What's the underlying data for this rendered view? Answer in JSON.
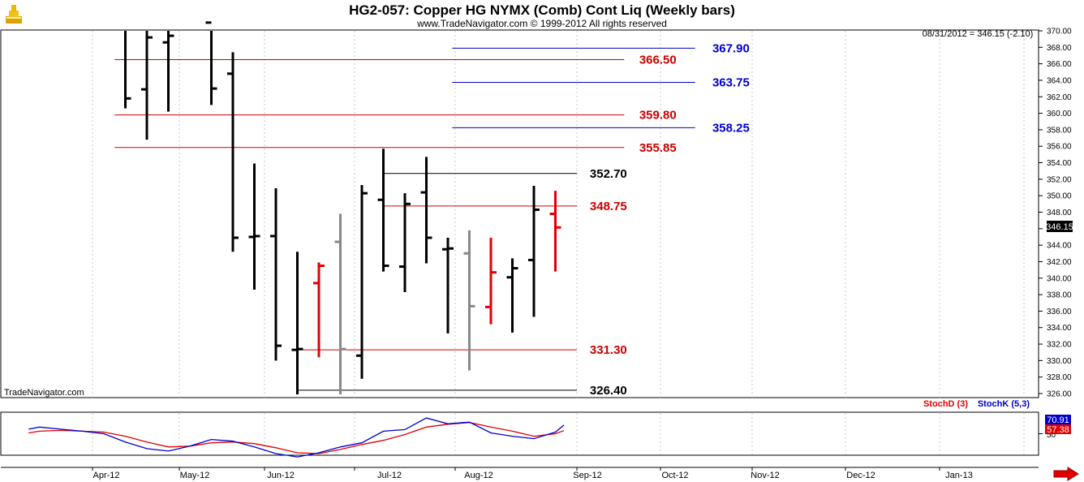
{
  "chart_data": {
    "type": "bar",
    "title": "HG2-057:  Copper HG NYMX (Comb) Cont Liq  (Weekly bars)",
    "subtitle": "www.TradeNavigator.com © 1999-2012 All rights reserved",
    "watermark": "TradeNavigator.com",
    "last_price_note": "08/31/2012 = 346.15 (-2.10)",
    "last_price_label": "346.15",
    "y_axis": {
      "min": 326,
      "max": 370,
      "ticks": [
        "370.00",
        "368.00",
        "366.00",
        "364.00",
        "362.00",
        "360.00",
        "358.00",
        "356.00",
        "354.00",
        "352.00",
        "350.00",
        "348.00",
        "346.00",
        "344.00",
        "342.00",
        "340.00",
        "338.00",
        "336.00",
        "334.00",
        "332.00",
        "330.00",
        "328.00",
        "326.00"
      ]
    },
    "x_axis": {
      "labels": [
        "Apr-12",
        "May-12",
        "Jun-12",
        "Jul-12",
        "Aug-12",
        "Sep-12",
        "Oct-12",
        "Nov-12",
        "Dec-12",
        "Jan-13"
      ]
    },
    "bars": [
      {
        "week": 1,
        "high": 371.5,
        "low": 360.6,
        "open": 371.2,
        "close": 361.8,
        "color": "#000000"
      },
      {
        "week": 2,
        "high": 371.8,
        "low": 356.8,
        "open": 362.9,
        "close": 369.2,
        "color": "#000000"
      },
      {
        "week": 3,
        "high": 371.5,
        "low": 360.2,
        "open": 368.6,
        "close": 369.4,
        "color": "#000000"
      },
      {
        "week": 5,
        "high": 371.5,
        "low": 361.0,
        "open": 371.0,
        "close": 363.0,
        "color": "#000000"
      },
      {
        "week": 6,
        "high": 367.4,
        "low": 343.2,
        "open": 364.8,
        "close": 344.9,
        "color": "#000000"
      },
      {
        "week": 7,
        "high": 353.9,
        "low": 338.6,
        "open": 345.0,
        "close": 345.1,
        "color": "#000000"
      },
      {
        "week": 8,
        "high": 350.9,
        "low": 330.0,
        "open": 345.1,
        "close": 331.8,
        "color": "#000000"
      },
      {
        "week": 9,
        "high": 343.2,
        "low": 325.8,
        "open": 331.3,
        "close": 331.4,
        "color": "#000000"
      },
      {
        "week": 10,
        "high": 341.9,
        "low": 330.4,
        "open": 339.4,
        "close": 341.5,
        "color": "#e00000"
      },
      {
        "week": 11,
        "high": 347.8,
        "low": 325.8,
        "open": 344.4,
        "close": 331.4,
        "color": "#888888"
      },
      {
        "week": 12,
        "high": 351.3,
        "low": 327.8,
        "open": 330.6,
        "close": 350.3,
        "color": "#000000"
      },
      {
        "week": 13,
        "high": 355.7,
        "low": 340.8,
        "open": 349.5,
        "close": 341.5,
        "color": "#000000"
      },
      {
        "week": 14,
        "high": 350.3,
        "low": 338.3,
        "open": 341.4,
        "close": 349.0,
        "color": "#000000"
      },
      {
        "week": 15,
        "high": 354.7,
        "low": 341.8,
        "open": 350.4,
        "close": 344.9,
        "color": "#000000"
      },
      {
        "week": 16,
        "high": 344.9,
        "low": 333.3,
        "open": 343.5,
        "close": 343.6,
        "color": "#000000"
      },
      {
        "week": 17,
        "high": 345.8,
        "low": 328.8,
        "open": 343.0,
        "close": 336.6,
        "color": "#888888"
      },
      {
        "week": 18,
        "high": 344.9,
        "low": 334.4,
        "open": 336.5,
        "close": 340.7,
        "color": "#e00000"
      },
      {
        "week": 19,
        "high": 342.4,
        "low": 333.4,
        "open": 340.1,
        "close": 341.2,
        "color": "#000000"
      },
      {
        "week": 20,
        "high": 351.2,
        "low": 335.3,
        "open": 342.2,
        "close": 348.3,
        "color": "#000000"
      },
      {
        "week": 21,
        "high": 350.6,
        "low": 340.8,
        "open": 347.8,
        "close": 346.15,
        "color": "#e00000"
      }
    ],
    "levels": [
      {
        "value": 367.9,
        "label": "367.90",
        "color": "#0000cc",
        "x_from": 16.2,
        "x_to": 27.5,
        "label_x": 28.3
      },
      {
        "value": 366.5,
        "label": "366.50",
        "color": "#cc0000",
        "x_from": 0.5,
        "x_to": 24.2,
        "label_x": 24.9
      },
      {
        "value": 363.75,
        "label": "363.75",
        "color": "#0000cc",
        "x_from": 16.2,
        "x_to": 27.5,
        "label_x": 28.3
      },
      {
        "value": 359.8,
        "label": "359.80",
        "color": "#cc0000",
        "x_from": 0.5,
        "x_to": 24.2,
        "label_x": 24.9
      },
      {
        "value": 358.25,
        "label": "358.25",
        "color": "#0000cc",
        "x_from": 16.2,
        "x_to": 27.5,
        "label_x": 28.3
      },
      {
        "value": 355.85,
        "label": "355.85",
        "color": "#cc0000",
        "x_from": 0.5,
        "x_to": 24.2,
        "label_x": 24.9
      },
      {
        "value": 352.7,
        "label": "352.70",
        "color": "#000000",
        "x_from": 13.0,
        "x_to": 22.0,
        "label_x": 22.6
      },
      {
        "value": 348.75,
        "label": "348.75",
        "color": "#cc0000",
        "x_from": 13.0,
        "x_to": 22.0,
        "label_x": 22.6
      },
      {
        "value": 331.3,
        "label": "331.30",
        "color": "#cc0000",
        "x_from": 9.0,
        "x_to": 22.0,
        "label_x": 22.6
      },
      {
        "value": 326.4,
        "label": "326.40",
        "color": "#000000",
        "x_from": 9.0,
        "x_to": 22.0,
        "label_x": 22.6
      }
    ],
    "indicator": {
      "legend": [
        {
          "name": "StochD (3)",
          "color": "#e00000"
        },
        {
          "name": "StochK (5,3)",
          "color": "#0000cc"
        }
      ],
      "y_min": 0,
      "y_max": 100,
      "tick_label": "50",
      "stoch_k_value": "70.91",
      "stoch_d_value": "57.38",
      "stoch_k": [
        [
          -3.5,
          61
        ],
        [
          -3,
          66
        ],
        [
          -2,
          61
        ],
        [
          -1,
          56
        ],
        [
          0,
          50
        ],
        [
          1,
          30
        ],
        [
          2,
          14
        ],
        [
          3,
          8
        ],
        [
          4,
          20
        ],
        [
          5,
          36
        ],
        [
          6,
          32
        ],
        [
          7,
          18
        ],
        [
          8,
          2
        ],
        [
          9,
          -6
        ],
        [
          10,
          4
        ],
        [
          11,
          18
        ],
        [
          12,
          28
        ],
        [
          13,
          56
        ],
        [
          14,
          60
        ],
        [
          15,
          88
        ],
        [
          16,
          74
        ],
        [
          17,
          78
        ],
        [
          18,
          52
        ],
        [
          19,
          44
        ],
        [
          20,
          38
        ],
        [
          21,
          54
        ],
        [
          21.4,
          70.91
        ]
      ],
      "stoch_d": [
        [
          -3.5,
          52
        ],
        [
          -3,
          56
        ],
        [
          -2,
          58
        ],
        [
          -1,
          56
        ],
        [
          0,
          54
        ],
        [
          1,
          44
        ],
        [
          2,
          30
        ],
        [
          3,
          18
        ],
        [
          4,
          20
        ],
        [
          5,
          28
        ],
        [
          6,
          30
        ],
        [
          7,
          26
        ],
        [
          8,
          16
        ],
        [
          9,
          4
        ],
        [
          10,
          2
        ],
        [
          11,
          12
        ],
        [
          12,
          24
        ],
        [
          13,
          34
        ],
        [
          14,
          48
        ],
        [
          15,
          66
        ],
        [
          16,
          73
        ],
        [
          17,
          77
        ],
        [
          18,
          66
        ],
        [
          19,
          56
        ],
        [
          20,
          44
        ],
        [
          21,
          50
        ],
        [
          21.4,
          57.38
        ]
      ]
    },
    "grid": true,
    "legend_position": "top-right"
  }
}
